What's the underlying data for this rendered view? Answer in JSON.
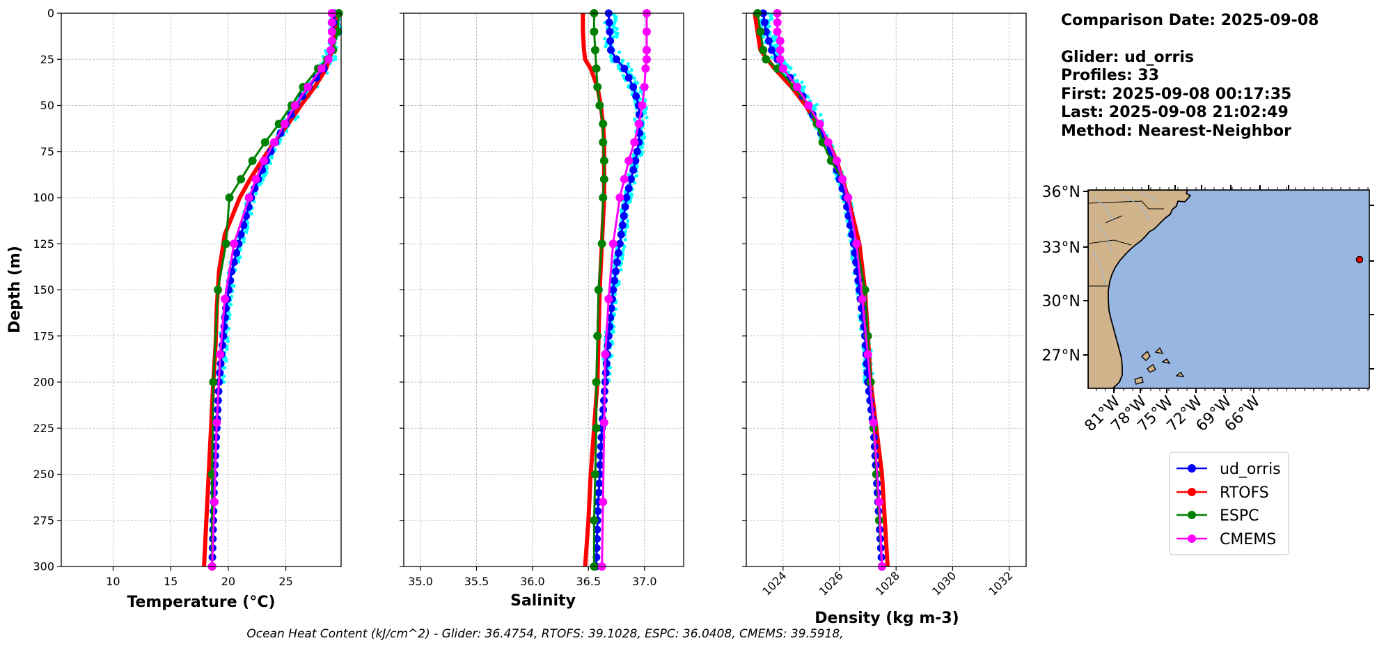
{
  "info": {
    "comparison_date": "Comparison Date: 2025-09-08",
    "glider": "Glider: ud_orris",
    "profiles": "Profiles: 33",
    "first": "First: 2025-09-08 00:17:35",
    "last": "Last: 2025-09-08 21:02:49",
    "method": "Method: Nearest-Neighbor"
  },
  "footer": "Ocean Heat Content (kJ/cm^2) - Glider: 36.4754,  RTOFS: 39.1028,  ESPC: 36.0408,  CMEMS: 39.5918,",
  "colors": {
    "ud_orris": "#0000ff",
    "RTOFS": "#ff0000",
    "ESPC": "#008000",
    "CMEMS": "#ff00ff",
    "raw_profiles": "#00ffff",
    "ocean": "#98b6e2",
    "land": "#d2b48c"
  },
  "map": {
    "lat_ticks": [
      "36°N",
      "33°N",
      "30°N",
      "27°N"
    ],
    "lon_ticks": [
      "81°W",
      "78°W",
      "75°W",
      "72°W",
      "69°W",
      "66°W"
    ],
    "glider_location": {
      "lon": -64.5,
      "lat": 32.3
    }
  },
  "legend": {
    "entries": [
      {
        "key": "ud_orris",
        "label": "ud_orris"
      },
      {
        "key": "RTOFS",
        "label": "RTOFS"
      },
      {
        "key": "ESPC",
        "label": "ESPC"
      },
      {
        "key": "CMEMS",
        "label": "CMEMS"
      }
    ]
  },
  "chart_data": [
    {
      "type": "line",
      "id": "temperature",
      "xlabel": "Temperature (°C)",
      "ylabel": "Depth (m)",
      "xlim": [
        5.5,
        29.8
      ],
      "ylim": [
        300,
        0
      ],
      "xticks": [
        "10",
        "15",
        "20",
        "25"
      ],
      "xtick_values": [
        10,
        15,
        20,
        25
      ],
      "yticks": [
        "0",
        "25",
        "50",
        "75",
        "100",
        "125",
        "150",
        "175",
        "200",
        "225",
        "250",
        "275",
        "300"
      ],
      "grid": true,
      "series": [
        {
          "name": "ud_orris",
          "depth": [
            0,
            10,
            20,
            30,
            40,
            50,
            60,
            70,
            80,
            90,
            100,
            120,
            140,
            160,
            180,
            200,
            225,
            250,
            275,
            300
          ],
          "values": [
            29.2,
            29.1,
            28.9,
            28.3,
            27.0,
            25.9,
            25.0,
            24.1,
            23.3,
            22.6,
            22.0,
            21.1,
            20.3,
            19.8,
            19.5,
            19.2,
            19.0,
            18.8,
            18.7,
            18.6
          ]
        },
        {
          "name": "RTOFS",
          "depth": [
            0,
            10,
            20,
            30,
            40,
            50,
            60,
            70,
            80,
            90,
            100,
            120,
            140,
            160,
            180,
            200,
            225,
            250,
            275,
            300
          ],
          "values": [
            29.4,
            29.3,
            29.0,
            28.5,
            27.5,
            26.3,
            25.2,
            24.0,
            22.9,
            21.9,
            21.0,
            19.7,
            19.2,
            19.0,
            18.9,
            18.7,
            18.5,
            18.3,
            18.1,
            17.9
          ]
        },
        {
          "name": "ESPC",
          "depth": [
            0,
            10,
            20,
            25,
            30,
            40,
            50,
            60,
            70,
            80,
            90,
            100,
            125,
            150,
            200,
            250,
            300
          ],
          "values": [
            29.6,
            29.5,
            29.1,
            28.6,
            27.8,
            26.5,
            25.5,
            24.4,
            23.2,
            22.1,
            21.1,
            20.1,
            19.8,
            19.1,
            18.7,
            18.6,
            18.6
          ]
        },
        {
          "name": "CMEMS",
          "depth": [
            0,
            5,
            10,
            15,
            20,
            25,
            30,
            40,
            50,
            60,
            70,
            80,
            90,
            100,
            125,
            155,
            185,
            222,
            265,
            300
          ],
          "values": [
            29.0,
            29.0,
            29.0,
            29.0,
            28.9,
            28.7,
            28.1,
            26.9,
            25.8,
            24.9,
            24.0,
            23.1,
            22.4,
            21.8,
            20.5,
            19.7,
            19.3,
            19.0,
            18.8,
            18.6
          ]
        }
      ]
    },
    {
      "type": "line",
      "id": "salinity",
      "xlabel": "Salinity",
      "xlim": [
        34.85,
        37.35
      ],
      "ylim": [
        300,
        0
      ],
      "xticks": [
        "35.0",
        "35.5",
        "36.0",
        "36.5",
        "37.0"
      ],
      "xtick_values": [
        35.0,
        35.5,
        36.0,
        36.5,
        37.0
      ],
      "yticks": [
        "0",
        "25",
        "50",
        "75",
        "100",
        "125",
        "150",
        "175",
        "200",
        "225",
        "250",
        "275",
        "300"
      ],
      "grid": true,
      "series": [
        {
          "name": "ud_orris",
          "depth": [
            0,
            10,
            20,
            25,
            30,
            40,
            50,
            60,
            70,
            80,
            90,
            100,
            125,
            150,
            175,
            200,
            225,
            250,
            275,
            300
          ],
          "values": [
            36.68,
            36.69,
            36.7,
            36.75,
            36.82,
            36.9,
            36.95,
            36.96,
            36.95,
            36.92,
            36.88,
            36.84,
            36.78,
            36.72,
            36.68,
            36.65,
            36.62,
            36.6,
            36.58,
            36.57
          ]
        },
        {
          "name": "RTOFS",
          "depth": [
            0,
            10,
            20,
            25,
            30,
            40,
            50,
            60,
            70,
            80,
            90,
            100,
            125,
            150,
            175,
            200,
            225,
            250,
            275,
            300
          ],
          "values": [
            36.45,
            36.45,
            36.46,
            36.47,
            36.52,
            36.58,
            36.61,
            36.63,
            36.64,
            36.64,
            36.64,
            36.64,
            36.62,
            36.6,
            36.59,
            36.58,
            36.55,
            36.52,
            36.5,
            36.47
          ]
        },
        {
          "name": "ESPC",
          "depth": [
            0,
            10,
            20,
            30,
            40,
            50,
            60,
            70,
            80,
            90,
            100,
            125,
            150,
            175,
            200,
            225,
            250,
            275,
            300
          ],
          "values": [
            36.55,
            36.55,
            36.56,
            36.57,
            36.58,
            36.6,
            36.63,
            36.63,
            36.64,
            36.64,
            36.63,
            36.62,
            36.59,
            36.58,
            36.57,
            36.57,
            36.56,
            36.55,
            36.55
          ]
        },
        {
          "name": "CMEMS",
          "depth": [
            0,
            10,
            20,
            25,
            30,
            40,
            50,
            60,
            70,
            80,
            90,
            100,
            125,
            155,
            185,
            222,
            265,
            300
          ],
          "values": [
            37.02,
            37.02,
            37.02,
            37.02,
            37.01,
            37.0,
            36.98,
            36.95,
            36.91,
            36.86,
            36.82,
            36.78,
            36.72,
            36.68,
            36.65,
            36.64,
            36.63,
            36.62
          ]
        }
      ]
    },
    {
      "type": "line",
      "id": "density",
      "xlabel": "Density (kg m-3)",
      "xlim": [
        1022.7,
        1032.6
      ],
      "ylim": [
        300,
        0
      ],
      "xticks": [
        "1024",
        "1026",
        "1028",
        "1030",
        "1032"
      ],
      "xtick_values": [
        1024,
        1026,
        1028,
        1030,
        1032
      ],
      "yticks": [
        "0",
        "25",
        "50",
        "75",
        "100",
        "125",
        "150",
        "175",
        "200",
        "225",
        "250",
        "275",
        "300"
      ],
      "grid": true,
      "series": [
        {
          "name": "ud_orris",
          "depth": [
            0,
            10,
            20,
            30,
            40,
            50,
            60,
            70,
            80,
            90,
            100,
            125,
            150,
            175,
            200,
            225,
            250,
            275,
            300
          ],
          "values": [
            1023.3,
            1023.4,
            1023.6,
            1024.0,
            1024.5,
            1024.9,
            1025.2,
            1025.5,
            1025.8,
            1026.0,
            1026.2,
            1026.5,
            1026.7,
            1026.9,
            1027.0,
            1027.2,
            1027.3,
            1027.4,
            1027.5
          ]
        },
        {
          "name": "RTOFS",
          "depth": [
            0,
            10,
            20,
            30,
            40,
            50,
            60,
            70,
            80,
            90,
            100,
            125,
            150,
            175,
            200,
            225,
            250,
            275,
            300
          ],
          "values": [
            1023.0,
            1023.1,
            1023.2,
            1023.7,
            1024.3,
            1024.8,
            1025.2,
            1025.6,
            1025.9,
            1026.1,
            1026.3,
            1026.7,
            1026.9,
            1027.0,
            1027.1,
            1027.3,
            1027.5,
            1027.6,
            1027.7
          ]
        },
        {
          "name": "ESPC",
          "depth": [
            0,
            10,
            20,
            25,
            30,
            40,
            50,
            60,
            70,
            80,
            90,
            100,
            125,
            150,
            175,
            200,
            225,
            250,
            275,
            300
          ],
          "values": [
            1023.1,
            1023.2,
            1023.3,
            1023.4,
            1023.8,
            1024.4,
            1024.9,
            1025.2,
            1025.4,
            1025.7,
            1026.1,
            1026.3,
            1026.6,
            1026.9,
            1027.0,
            1027.1,
            1027.2,
            1027.3,
            1027.4,
            1027.5
          ]
        },
        {
          "name": "CMEMS",
          "depth": [
            0,
            5,
            10,
            15,
            20,
            25,
            30,
            40,
            50,
            60,
            70,
            80,
            90,
            100,
            125,
            155,
            185,
            222,
            265,
            300
          ],
          "values": [
            1023.8,
            1023.8,
            1023.8,
            1023.9,
            1023.9,
            1023.9,
            1024.0,
            1024.5,
            1024.9,
            1025.3,
            1025.6,
            1025.9,
            1026.1,
            1026.3,
            1026.6,
            1026.8,
            1027.0,
            1027.2,
            1027.4,
            1027.5
          ]
        }
      ]
    }
  ]
}
